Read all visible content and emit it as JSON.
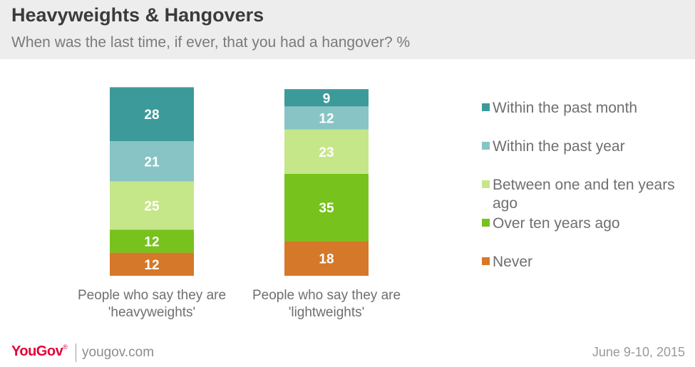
{
  "title": "Heavyweights & Hangovers",
  "subtitle": "When was the last time, if ever, that you had a hangover? %",
  "footer": {
    "brand": "YouGov",
    "url": "yougov.com",
    "date": "June 9-10, 2015"
  },
  "chart_data": {
    "type": "bar",
    "stacked": true,
    "categories": [
      [
        "People who say they are",
        "'heavyweights'"
      ],
      [
        "People who say they are",
        "'lightweights'"
      ]
    ],
    "series": [
      {
        "name": "Within the past month",
        "values": [
          28,
          9
        ],
        "color": "#3d9a9b"
      },
      {
        "name": "Within the past year",
        "values": [
          21,
          12
        ],
        "color": "#88c4c5"
      },
      {
        "name": "Between one and ten years ago",
        "values": [
          25,
          23
        ],
        "color": "#c6e68a"
      },
      {
        "name": "Over ten years ago",
        "values": [
          12,
          35
        ],
        "color": "#78c21d"
      },
      {
        "name": "Never",
        "values": [
          12,
          18
        ],
        "color": "#d5782a"
      }
    ],
    "legend_position": "right",
    "grid": false
  }
}
